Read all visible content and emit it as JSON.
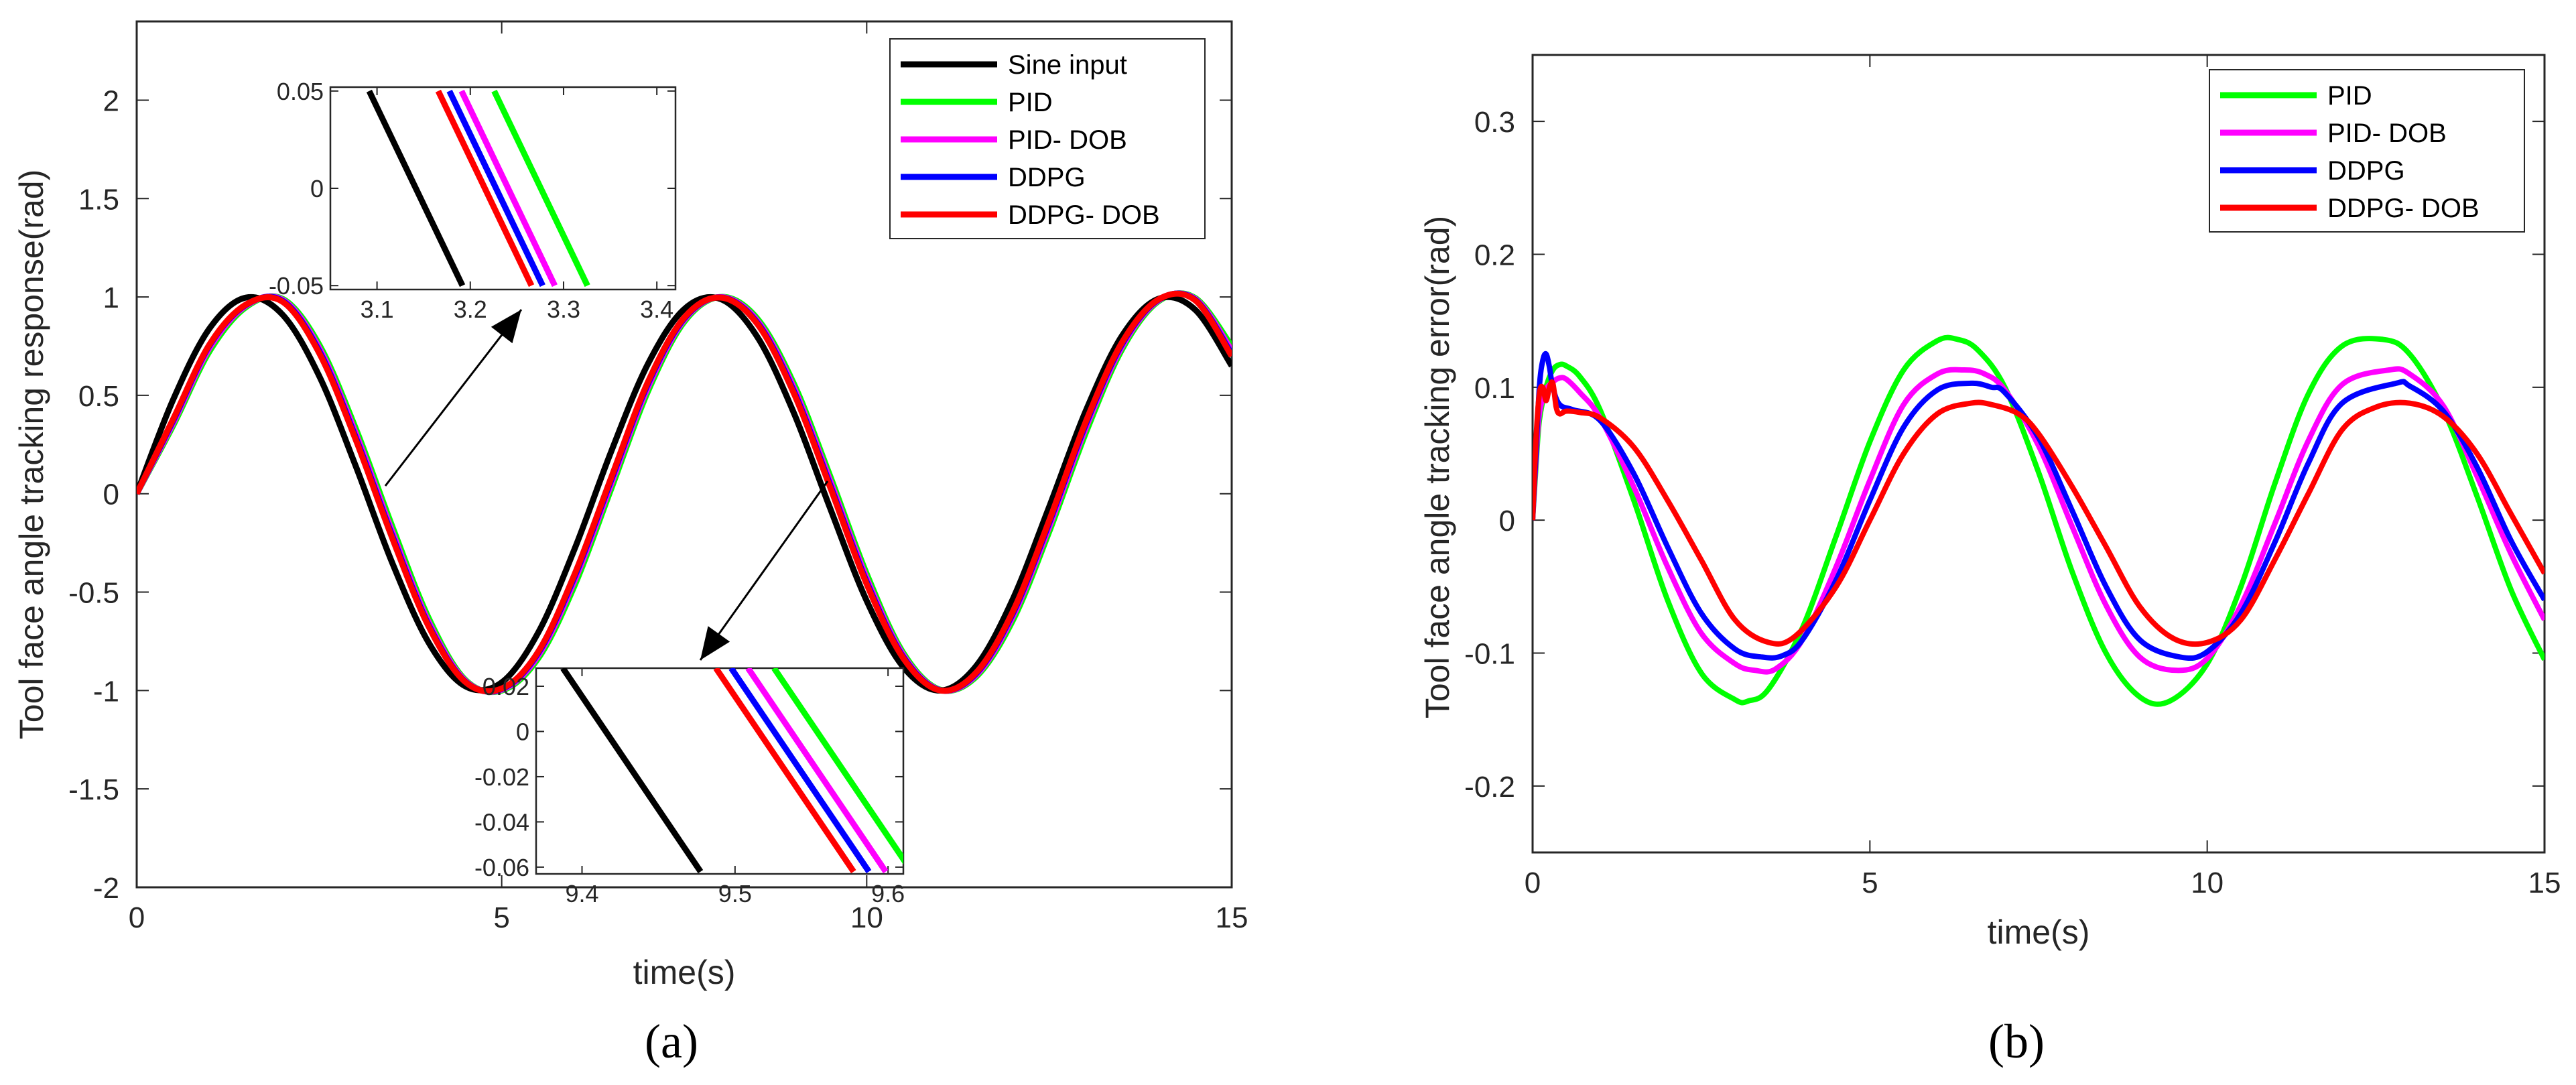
{
  "figure": {
    "panel_a_label": "(a)",
    "panel_b_label": "(b)"
  },
  "chart_data": [
    {
      "type": "line",
      "panel": "(a)",
      "title": "",
      "xlabel": "time(s)",
      "ylabel": "Tool face angle tracking response(rad)",
      "xlim": [
        0,
        15
      ],
      "ylim": [
        -2,
        2.4
      ],
      "xticks": [
        0,
        5,
        10,
        15
      ],
      "yticks": [
        -2,
        -1.5,
        -1,
        -0.5,
        0,
        0.5,
        1,
        1.5,
        2
      ],
      "legend_position": "top-right",
      "x": [
        0,
        0.5,
        1,
        1.5,
        2,
        2.5,
        3,
        3.5,
        4,
        4.5,
        5,
        5.5,
        6,
        6.5,
        7,
        7.5,
        8,
        8.5,
        9,
        9.5,
        10,
        10.5,
        11,
        11.5,
        12,
        12.5,
        13,
        13.5,
        14,
        14.5,
        15
      ],
      "series": [
        {
          "name": "Sine input",
          "color": "#000000",
          "values": [
            0,
            0.479,
            0.841,
            0.997,
            0.909,
            0.598,
            0.141,
            -0.351,
            -0.757,
            -0.978,
            -0.959,
            -0.706,
            -0.279,
            0.215,
            0.657,
            0.938,
            0.989,
            0.798,
            0.412,
            -0.075,
            -0.544,
            -0.88,
            -1.0,
            -0.875,
            -0.537,
            -0.066,
            0.42,
            0.804,
            0.991,
            0.935,
            0.65
          ]
        },
        {
          "name": "PID",
          "color": "#00ff00",
          "values": [
            0,
            0.347,
            0.725,
            0.949,
            0.99,
            0.758,
            0.332,
            -0.165,
            -0.632,
            -0.945,
            -1.0,
            -0.837,
            -0.465,
            0.025,
            0.517,
            0.873,
            1.0,
            0.891,
            0.561,
            0.089,
            -0.407,
            -0.808,
            -0.995,
            -0.93,
            -0.645,
            -0.193,
            0.308,
            0.735,
            0.979,
            0.995,
            0.75
          ]
        },
        {
          "name": "PID- DOB",
          "color": "#ff00ff",
          "values": [
            0,
            0.36,
            0.742,
            0.956,
            0.985,
            0.74,
            0.307,
            -0.193,
            -0.652,
            -0.95,
            -0.996,
            -0.822,
            -0.44,
            0.05,
            0.538,
            0.883,
            0.999,
            0.879,
            0.54,
            0.064,
            -0.43,
            -0.82,
            -0.997,
            -0.921,
            -0.625,
            -0.168,
            0.333,
            0.75,
            0.983,
            0.99,
            0.728
          ]
        },
        {
          "name": "DDPG",
          "color": "#0000ff",
          "values": [
            0,
            0.372,
            0.755,
            0.96,
            0.98,
            0.725,
            0.287,
            -0.213,
            -0.667,
            -0.954,
            -0.992,
            -0.81,
            -0.42,
            0.07,
            0.555,
            0.89,
            0.998,
            0.87,
            0.523,
            0.044,
            -0.448,
            -0.829,
            -0.998,
            -0.914,
            -0.61,
            -0.148,
            0.352,
            0.762,
            0.986,
            0.986,
            0.71
          ]
        },
        {
          "name": "DDPG- DOB",
          "color": "#ff0000",
          "values": [
            0,
            0.38,
            0.76,
            0.962,
            0.975,
            0.715,
            0.275,
            -0.225,
            -0.675,
            -0.956,
            -0.99,
            -0.803,
            -0.408,
            0.082,
            0.565,
            0.895,
            0.997,
            0.864,
            0.512,
            0.032,
            -0.459,
            -0.835,
            -0.999,
            -0.909,
            -0.6,
            -0.136,
            0.364,
            0.77,
            0.988,
            0.983,
            0.7
          ]
        }
      ],
      "insets": [
        {
          "name": "zoom-1",
          "xlim": [
            3.05,
            3.42
          ],
          "ylim": [
            -0.052,
            0.052
          ],
          "xticks": [
            3.1,
            3.2,
            3.3,
            3.4
          ],
          "yticks": [
            -0.05,
            0,
            0.05
          ],
          "series": [
            {
              "name": "Sine input",
              "color": "#000000",
              "x": [
                3.0916,
                3.1916
              ],
              "y": [
                0.05,
                -0.05
              ]
            },
            {
              "name": "DDPG- DOB",
              "color": "#ff0000",
              "x": [
                3.1656,
                3.2656
              ],
              "y": [
                0.05,
                -0.05
              ]
            },
            {
              "name": "DDPG",
              "color": "#0000ff",
              "x": [
                3.1776,
                3.2776
              ],
              "y": [
                0.05,
                -0.05
              ]
            },
            {
              "name": "PID- DOB",
              "color": "#ff00ff",
              "x": [
                3.1906,
                3.2906
              ],
              "y": [
                0.05,
                -0.05
              ]
            },
            {
              "name": "PID",
              "color": "#00ff00",
              "x": [
                3.2256,
                3.3256
              ],
              "y": [
                0.05,
                -0.05
              ]
            }
          ]
        },
        {
          "name": "zoom-2",
          "xlim": [
            9.37,
            9.61
          ],
          "ylim": [
            -0.063,
            0.028
          ],
          "xticks": [
            9.4,
            9.5,
            9.6
          ],
          "yticks": [
            -0.06,
            -0.04,
            -0.02,
            0,
            0.02
          ],
          "series": [
            {
              "name": "Sine input",
              "color": "#000000",
              "x": [
                9.3875,
                9.4775
              ],
              "y": [
                0.028,
                -0.062
              ]
            },
            {
              "name": "DDPG- DOB",
              "color": "#ff0000",
              "x": [
                9.4875,
                9.5775
              ],
              "y": [
                0.028,
                -0.062
              ]
            },
            {
              "name": "DDPG",
              "color": "#0000ff",
              "x": [
                9.4975,
                9.5875
              ],
              "y": [
                0.028,
                -0.062
              ]
            },
            {
              "name": "PID- DOB",
              "color": "#ff00ff",
              "x": [
                9.5085,
                9.5985
              ],
              "y": [
                0.028,
                -0.062
              ]
            },
            {
              "name": "PID",
              "color": "#00ff00",
              "x": [
                9.5255,
                9.6155
              ],
              "y": [
                0.028,
                -0.062
              ]
            }
          ]
        }
      ]
    },
    {
      "type": "line",
      "panel": "(b)",
      "title": "",
      "xlabel": "time(s)",
      "ylabel": "Tool face angle tracking error(rad)",
      "xlim": [
        0,
        15
      ],
      "ylim": [
        -0.25,
        0.35
      ],
      "xticks": [
        0,
        5,
        10,
        15
      ],
      "yticks": [
        -0.2,
        -0.1,
        0,
        0.1,
        0.2,
        0.3
      ],
      "legend_position": "top-right",
      "series": [
        {
          "name": "PID",
          "color": "#00ff00",
          "x": [
            0,
            0.05,
            0.1,
            0.2,
            0.3,
            0.4,
            0.5,
            0.7,
            1,
            1.5,
            2,
            2.5,
            3,
            3.2,
            3.5,
            4,
            4.5,
            5,
            5.5,
            6,
            6.3,
            6.6,
            7,
            7.5,
            8,
            8.5,
            9,
            9.45,
            10,
            10.5,
            11,
            11.5,
            12,
            12.6,
            13,
            13.5,
            14,
            14.5,
            15
          ],
          "values": [
            0,
            0.04,
            0.075,
            0.1,
            0.113,
            0.117,
            0.116,
            0.108,
            0.083,
            0.015,
            -0.06,
            -0.115,
            -0.135,
            -0.136,
            -0.127,
            -0.081,
            -0.012,
            0.059,
            0.113,
            0.135,
            0.136,
            0.128,
            0.1,
            0.036,
            -0.039,
            -0.1,
            -0.133,
            -0.136,
            -0.108,
            -0.05,
            0.027,
            0.095,
            0.131,
            0.136,
            0.125,
            0.083,
            0.018,
            -0.052,
            -0.105
          ]
        },
        {
          "name": "PID- DOB",
          "color": "#ff00ff",
          "x": [
            0,
            0.05,
            0.1,
            0.2,
            0.3,
            0.4,
            0.5,
            0.7,
            1,
            1.5,
            2,
            2.5,
            3,
            3.3,
            3.6,
            4,
            4.5,
            5,
            5.5,
            6,
            6.4,
            6.7,
            7,
            7.5,
            8,
            8.5,
            9,
            9.55,
            10,
            10.5,
            11,
            11.5,
            12,
            12.7,
            13,
            13.5,
            14,
            14.5,
            15
          ],
          "values": [
            0,
            0.045,
            0.08,
            0.098,
            0.104,
            0.107,
            0.106,
            0.096,
            0.077,
            0.025,
            -0.035,
            -0.085,
            -0.108,
            -0.113,
            -0.112,
            -0.09,
            -0.035,
            0.03,
            0.087,
            0.11,
            0.113,
            0.11,
            0.098,
            0.056,
            -0.005,
            -0.064,
            -0.103,
            -0.113,
            -0.104,
            -0.064,
            -0.003,
            0.06,
            0.102,
            0.113,
            0.11,
            0.086,
            0.033,
            -0.025,
            -0.075
          ]
        },
        {
          "name": "DDPG",
          "color": "#0000ff",
          "x": [
            0,
            0.05,
            0.1,
            0.15,
            0.2,
            0.25,
            0.3,
            0.4,
            0.6,
            1,
            1.5,
            2,
            2.5,
            3,
            3.4,
            3.7,
            4,
            4.5,
            5,
            5.5,
            6,
            6.5,
            6.8,
            7,
            7.5,
            8,
            8.5,
            9,
            9.6,
            10,
            10.5,
            11,
            11.5,
            12,
            12.8,
            13,
            13.5,
            14,
            14.5,
            15
          ],
          "values": [
            0,
            0.05,
            0.1,
            0.12,
            0.125,
            0.115,
            0.1,
            0.087,
            0.083,
            0.075,
            0.035,
            -0.02,
            -0.07,
            -0.097,
            -0.103,
            -0.102,
            -0.09,
            -0.045,
            0.015,
            0.07,
            0.098,
            0.103,
            0.1,
            0.096,
            0.062,
            0.007,
            -0.05,
            -0.09,
            -0.103,
            -0.099,
            -0.07,
            -0.017,
            0.043,
            0.088,
            0.103,
            0.101,
            0.082,
            0.04,
            -0.015,
            -0.06
          ]
        },
        {
          "name": "DDPG- DOB",
          "color": "#ff0000",
          "x": [
            0,
            0.05,
            0.1,
            0.15,
            0.2,
            0.25,
            0.3,
            0.35,
            0.4,
            0.5,
            0.7,
            1,
            1.5,
            2,
            2.5,
            3,
            3.5,
            3.9,
            4.5,
            5,
            5.5,
            6,
            6.5,
            6.8,
            7.2,
            7.5,
            8,
            8.5,
            9,
            9.5,
            10,
            10.5,
            11,
            11.5,
            12,
            12.5,
            13,
            13.5,
            14,
            14.5,
            15
          ],
          "values": [
            0,
            0.06,
            0.095,
            0.1,
            0.09,
            0.1,
            0.103,
            0.085,
            0.08,
            0.082,
            0.081,
            0.077,
            0.055,
            0.015,
            -0.03,
            -0.075,
            -0.092,
            -0.087,
            -0.05,
            0.0,
            0.05,
            0.08,
            0.088,
            0.087,
            0.08,
            0.065,
            0.025,
            -0.02,
            -0.065,
            -0.089,
            -0.092,
            -0.075,
            -0.03,
            0.02,
            0.068,
            0.085,
            0.088,
            0.078,
            0.05,
            0.005,
            -0.04
          ]
        }
      ]
    }
  ]
}
